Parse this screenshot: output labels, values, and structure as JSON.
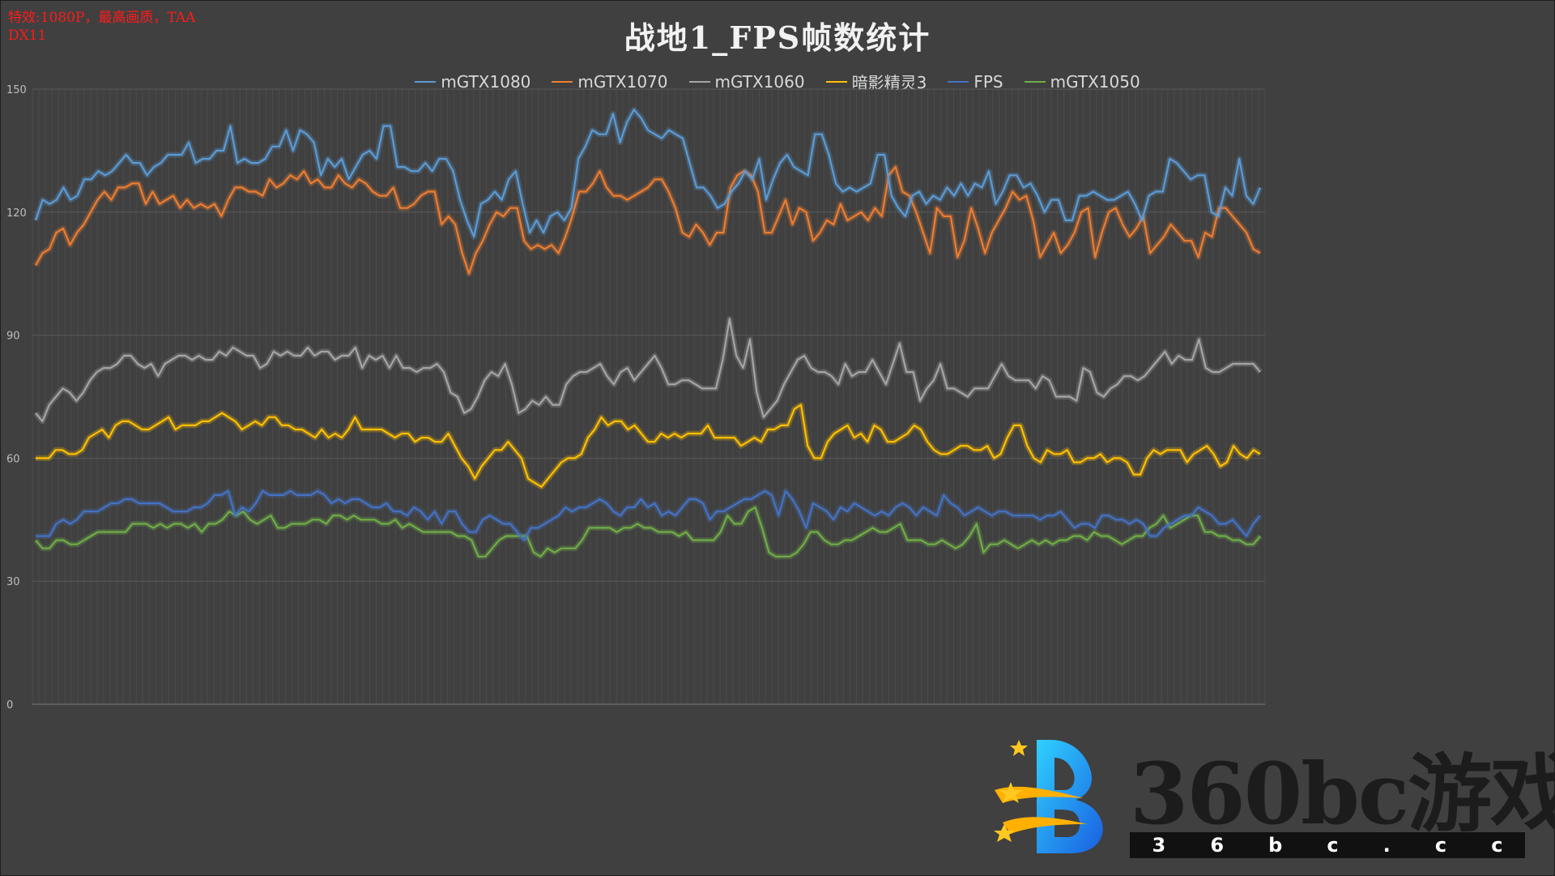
{
  "annotations": {
    "line1": "特效:1080P，最高画质，TAA",
    "line2": "DX11"
  },
  "watermark": {
    "brand": "360bc游戏",
    "url_letters": [
      "3",
      "6",
      "b",
      "c",
      ".",
      "c",
      "c"
    ]
  },
  "chart_data": {
    "type": "line",
    "title": "战地1_FPS帧数统计",
    "xlabel": "",
    "ylabel": "",
    "ylim": [
      0,
      150
    ],
    "yticks": [
      0,
      30,
      60,
      90,
      120,
      150
    ],
    "grid": "vertical-lines",
    "legend_position": "top",
    "series": [
      {
        "name": "mGTX1080",
        "color": "#5b9bd5",
        "values": [
          118,
          123,
          122,
          123,
          126,
          123,
          124,
          128,
          128,
          130,
          129,
          130,
          132,
          134,
          132,
          132,
          129,
          131,
          132,
          134,
          134,
          134,
          137,
          132,
          133,
          133,
          135,
          135,
          141,
          132,
          133,
          132,
          132,
          133,
          136,
          136,
          140,
          135,
          140,
          139,
          137,
          129,
          133,
          131,
          133,
          128,
          131,
          134,
          135,
          133,
          141,
          141,
          131,
          131,
          130,
          130,
          132,
          130,
          133,
          133,
          130,
          123,
          118,
          114,
          122,
          123,
          125,
          123,
          128,
          130,
          122,
          115,
          118,
          115,
          119,
          120,
          118,
          121,
          133,
          136,
          140,
          139,
          139,
          144,
          137,
          142,
          145,
          143,
          140,
          139,
          138,
          140,
          139,
          138,
          132,
          126,
          126,
          124,
          121,
          122,
          125,
          127,
          130,
          128,
          133,
          123,
          128,
          132,
          134,
          131,
          130,
          129,
          139,
          139,
          134,
          127,
          125,
          126,
          125,
          126,
          127,
          134,
          134,
          124,
          121,
          119,
          124,
          125,
          122,
          124,
          123,
          126,
          124,
          127,
          124,
          127,
          126,
          130,
          122,
          125,
          129,
          129,
          126,
          127,
          124,
          120,
          123,
          123,
          118,
          118,
          124,
          124,
          125,
          124,
          123,
          123,
          124,
          125,
          122,
          118,
          124,
          125,
          125,
          133,
          132,
          130,
          128,
          129,
          129,
          120,
          119,
          126,
          124,
          133,
          124,
          122,
          126
        ]
      },
      {
        "name": "mGTX1070",
        "color": "#ed7d31",
        "values": [
          107,
          110,
          111,
          115,
          116,
          112,
          115,
          117,
          120,
          123,
          125,
          123,
          126,
          126,
          127,
          127,
          122,
          125,
          122,
          123,
          124,
          121,
          123,
          121,
          122,
          121,
          122,
          119,
          123,
          126,
          126,
          125,
          125,
          124,
          128,
          126,
          127,
          129,
          128,
          130,
          127,
          128,
          126,
          126,
          129,
          127,
          126,
          128,
          127,
          125,
          124,
          124,
          126,
          121,
          121,
          122,
          124,
          125,
          125,
          117,
          119,
          117,
          110,
          105,
          110,
          113,
          117,
          120,
          119,
          121,
          121,
          113,
          111,
          112,
          111,
          112,
          110,
          114,
          119,
          125,
          125,
          127,
          130,
          126,
          124,
          124,
          123,
          124,
          125,
          126,
          128,
          128,
          125,
          121,
          115,
          114,
          117,
          115,
          112,
          115,
          115,
          126,
          129,
          130,
          129,
          125,
          115,
          115,
          119,
          123,
          117,
          121,
          120,
          113,
          115,
          118,
          117,
          122,
          118,
          119,
          120,
          118,
          121,
          119,
          129,
          131,
          125,
          124,
          120,
          115,
          110,
          121,
          119,
          119,
          109,
          113,
          121,
          116,
          110,
          115,
          118,
          121,
          125,
          123,
          124,
          118,
          109,
          112,
          115,
          110,
          112,
          115,
          120,
          121,
          109,
          115,
          120,
          121,
          117,
          114,
          116,
          119,
          110,
          112,
          114,
          117,
          115,
          113,
          113,
          109,
          115,
          114,
          121,
          121,
          119,
          117,
          115,
          111,
          110
        ]
      },
      {
        "name": "mGTX1060",
        "color": "#a5a5a5",
        "values": [
          71,
          69,
          73,
          75,
          77,
          76,
          74,
          76,
          79,
          81,
          82,
          82,
          83,
          85,
          85,
          83,
          82,
          83,
          80,
          83,
          84,
          85,
          85,
          84,
          85,
          84,
          84,
          86,
          85,
          87,
          86,
          85,
          85,
          82,
          83,
          86,
          85,
          86,
          85,
          85,
          87,
          85,
          86,
          86,
          84,
          85,
          85,
          87,
          82,
          85,
          84,
          85,
          82,
          85,
          82,
          82,
          81,
          82,
          82,
          83,
          81,
          76,
          75,
          71,
          72,
          75,
          79,
          81,
          80,
          83,
          78,
          71,
          72,
          74,
          73,
          75,
          73,
          73,
          78,
          80,
          81,
          81,
          82,
          83,
          80,
          78,
          81,
          82,
          79,
          81,
          83,
          85,
          82,
          78,
          78,
          79,
          79,
          78,
          77,
          77,
          77,
          84,
          94,
          85,
          82,
          89,
          76,
          70,
          72,
          74,
          78,
          81,
          84,
          85,
          82,
          81,
          81,
          80,
          78,
          83,
          80,
          81,
          81,
          84,
          81,
          78,
          83,
          88,
          81,
          81,
          74,
          77,
          79,
          83,
          77,
          77,
          76,
          75,
          77,
          77,
          77,
          80,
          83,
          80,
          79,
          79,
          79,
          77,
          80,
          79,
          75,
          75,
          75,
          74,
          82,
          81,
          76,
          75,
          77,
          78,
          80,
          80,
          79,
          80,
          82,
          84,
          86,
          83,
          85,
          84,
          84,
          89,
          82,
          81,
          81,
          82,
          83,
          83,
          83,
          83,
          81
        ]
      },
      {
        "name": "暗影精灵3",
        "color": "#ffc000",
        "values": [
          60,
          60,
          60,
          62,
          62,
          61,
          61,
          62,
          65,
          66,
          67,
          65,
          68,
          69,
          69,
          68,
          67,
          67,
          68,
          69,
          70,
          67,
          68,
          68,
          68,
          69,
          69,
          70,
          71,
          70,
          69,
          67,
          68,
          69,
          68,
          70,
          70,
          68,
          68,
          67,
          67,
          66,
          65,
          67,
          65,
          66,
          65,
          67,
          70,
          67,
          67,
          67,
          67,
          66,
          65,
          66,
          66,
          64,
          65,
          65,
          64,
          64,
          66,
          63,
          60,
          58,
          55,
          58,
          60,
          62,
          62,
          64,
          62,
          60,
          55,
          54,
          53,
          55,
          57,
          59,
          60,
          60,
          61,
          65,
          67,
          70,
          68,
          69,
          69,
          67,
          68,
          66,
          64,
          64,
          66,
          65,
          66,
          65,
          66,
          66,
          66,
          68,
          65,
          65,
          65,
          65,
          63,
          64,
          65,
          64,
          67,
          67,
          68,
          68,
          72,
          73,
          63,
          60,
          60,
          64,
          66,
          67,
          68,
          65,
          66,
          64,
          68,
          67,
          64,
          64,
          65,
          66,
          68,
          67,
          64,
          62,
          61,
          61,
          62,
          63,
          63,
          62,
          62,
          63,
          60,
          61,
          65,
          68,
          68,
          63,
          60,
          59,
          62,
          61,
          61,
          62,
          59,
          59,
          60,
          60,
          61,
          59,
          60,
          60,
          59,
          56,
          56,
          60,
          62,
          61,
          62,
          62,
          62,
          59,
          61,
          62,
          63,
          61,
          58,
          59,
          63,
          61,
          60,
          62,
          61
        ]
      },
      {
        "name": "FPS",
        "color": "#4472c4",
        "values": [
          41,
          41,
          41,
          44,
          45,
          44,
          45,
          47,
          47,
          47,
          48,
          49,
          49,
          50,
          50,
          49,
          49,
          49,
          49,
          48,
          47,
          47,
          47,
          48,
          48,
          49,
          51,
          51,
          52,
          46,
          48,
          47,
          49,
          52,
          51,
          51,
          51,
          52,
          51,
          51,
          51,
          52,
          51,
          49,
          50,
          49,
          50,
          50,
          49,
          48,
          48,
          49,
          47,
          47,
          46,
          48,
          47,
          45,
          47,
          44,
          47,
          47,
          44,
          42,
          42,
          45,
          46,
          45,
          44,
          44,
          42,
          40,
          43,
          43,
          44,
          45,
          46,
          48,
          47,
          48,
          48,
          49,
          50,
          49,
          47,
          46,
          48,
          48,
          50,
          48,
          49,
          46,
          47,
          46,
          48,
          50,
          50,
          49,
          45,
          47,
          47,
          48,
          49,
          50,
          50,
          51,
          52,
          51,
          46,
          52,
          50,
          47,
          43,
          49,
          48,
          47,
          45,
          48,
          47,
          49,
          48,
          47,
          46,
          47,
          46,
          48,
          49,
          48,
          46,
          48,
          47,
          46,
          51,
          49,
          48,
          46,
          47,
          48,
          47,
          46,
          47,
          47,
          46,
          46,
          46,
          46,
          45,
          46,
          46,
          47,
          45,
          43,
          44,
          44,
          43,
          46,
          46,
          45,
          45,
          44,
          45,
          44,
          41,
          41,
          43,
          44,
          45,
          46,
          46,
          48,
          47,
          46,
          44,
          44,
          45,
          43,
          41,
          44,
          46
        ]
      },
      {
        "name": "mGTX1050",
        "color": "#70ad47",
        "values": [
          40,
          38,
          38,
          40,
          40,
          39,
          39,
          40,
          41,
          42,
          42,
          42,
          42,
          42,
          44,
          44,
          44,
          43,
          44,
          43,
          44,
          44,
          43,
          44,
          42,
          44,
          44,
          45,
          47,
          46,
          47,
          45,
          44,
          45,
          46,
          43,
          43,
          44,
          44,
          44,
          45,
          45,
          44,
          46,
          46,
          45,
          46,
          45,
          45,
          45,
          44,
          44,
          45,
          43,
          44,
          43,
          42,
          42,
          42,
          42,
          42,
          41,
          41,
          40,
          36,
          36,
          38,
          40,
          41,
          41,
          41,
          41,
          37,
          36,
          38,
          37,
          38,
          38,
          38,
          40,
          43,
          43,
          43,
          43,
          42,
          43,
          43,
          44,
          43,
          43,
          42,
          42,
          42,
          41,
          42,
          40,
          40,
          40,
          40,
          42,
          46,
          44,
          44,
          47,
          48,
          43,
          37,
          36,
          36,
          36,
          37,
          39,
          42,
          42,
          40,
          39,
          39,
          40,
          40,
          41,
          42,
          43,
          42,
          42,
          43,
          44,
          40,
          40,
          40,
          39,
          39,
          40,
          39,
          38,
          39,
          41,
          44,
          37,
          39,
          39,
          40,
          39,
          38,
          39,
          40,
          39,
          40,
          39,
          40,
          40,
          41,
          41,
          40,
          42,
          41,
          41,
          40,
          39,
          40,
          41,
          41,
          43,
          44,
          46,
          43,
          44,
          45,
          46,
          46,
          42,
          42,
          41,
          41,
          40,
          40,
          39,
          39,
          41
        ]
      }
    ]
  }
}
